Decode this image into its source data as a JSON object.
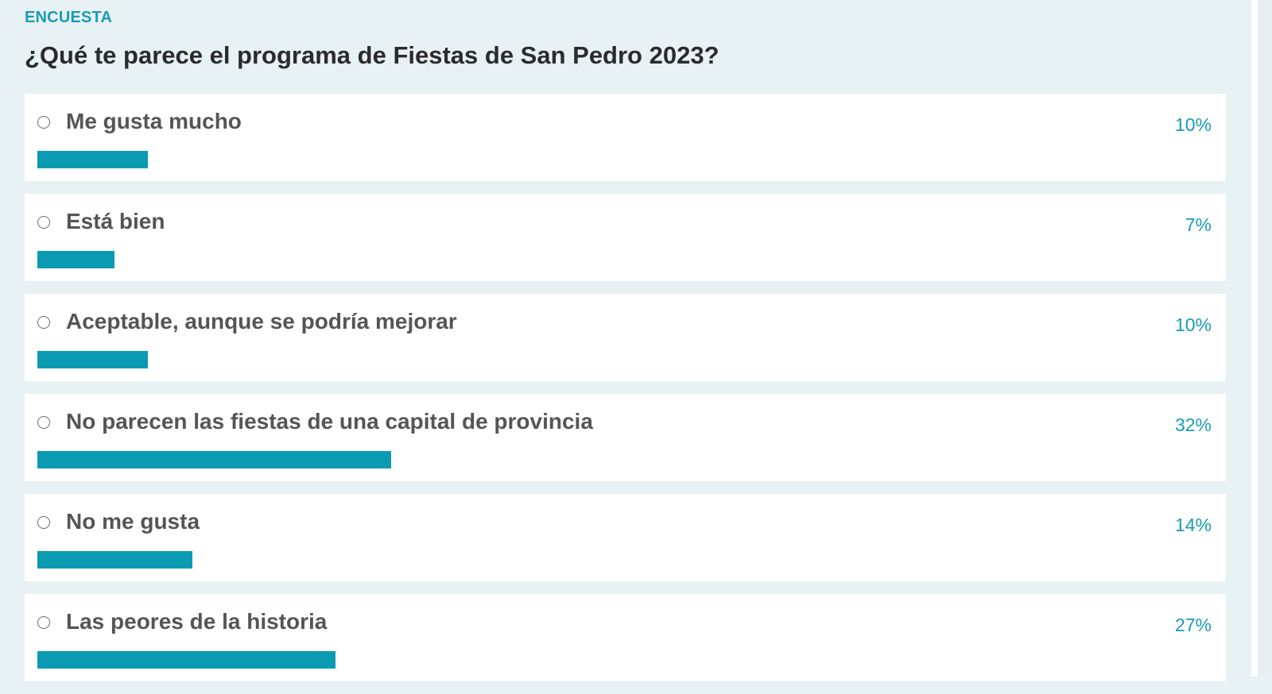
{
  "poll": {
    "kicker": "ENCUESTA",
    "question": "¿Qué te parece el programa de Fiestas de San Pedro 2023?",
    "accent_color": "#1a9cb5",
    "bar_color": "#0a9bb2",
    "options": [
      {
        "label": "Me gusta mucho",
        "percent_label": "10%",
        "percent": 10
      },
      {
        "label": "Está bien",
        "percent_label": "7%",
        "percent": 7
      },
      {
        "label": "Aceptable, aunque se podría mejorar",
        "percent_label": "10%",
        "percent": 10
      },
      {
        "label": "No parecen las fiestas de una capital de provincia",
        "percent_label": "32%",
        "percent": 32
      },
      {
        "label": "No me gusta",
        "percent_label": "14%",
        "percent": 14
      },
      {
        "label": "Las peores de la historia",
        "percent_label": "27%",
        "percent": 27
      }
    ]
  }
}
